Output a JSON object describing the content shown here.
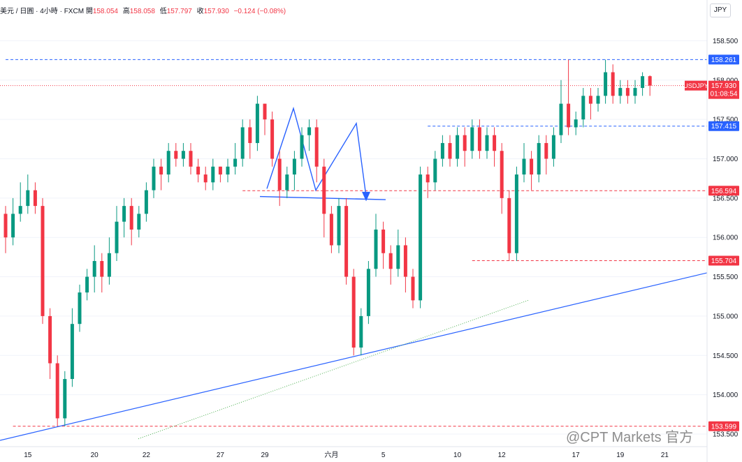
{
  "header": {
    "symbol": "美元 / 日圓",
    "timeframe": "4小時",
    "source": "FXCM",
    "open_label": "開",
    "open": "158.054",
    "high_label": "高",
    "high": "158.058",
    "low_label": "低",
    "low": "157.797",
    "close_label": "收",
    "close": "157.930",
    "change": "−0.124 (−0.08%)"
  },
  "currency_button": "JPY",
  "watermark": "@CPT Markets 官方",
  "colors": {
    "up": "#089981",
    "down": "#f23645",
    "blue": "#2962ff",
    "red": "#f23645",
    "green": "#4caf50"
  },
  "chart_data": {
    "type": "candlestick",
    "ylim": [
      153.34,
      158.77
    ],
    "y_ticks": [
      "153.500",
      "154.000",
      "154.500",
      "155.000",
      "155.500",
      "156.000",
      "156.500",
      "157.000",
      "157.500",
      "158.000",
      "158.500"
    ],
    "x_ticks": [
      {
        "label": "15",
        "i": 3
      },
      {
        "label": "20",
        "i": 12
      },
      {
        "label": "22",
        "i": 19
      },
      {
        "label": "27",
        "i": 29
      },
      {
        "label": "29",
        "i": 35
      },
      {
        "label": "六月",
        "i": 44
      },
      {
        "label": "5",
        "i": 51
      },
      {
        "label": "10",
        "i": 61
      },
      {
        "label": "12",
        "i": 67
      },
      {
        "label": "17",
        "i": 77
      },
      {
        "label": "19",
        "i": 83
      },
      {
        "label": "21",
        "i": 89
      }
    ],
    "key_levels": [
      {
        "label": "158.261",
        "value": 158.261,
        "style": "blue",
        "from_i": 0
      },
      {
        "label": "157.415",
        "value": 157.415,
        "style": "blue",
        "from_i": 57
      },
      {
        "label": "156.594",
        "value": 156.594,
        "style": "red",
        "from_i": 32
      },
      {
        "label": "155.704",
        "value": 155.704,
        "style": "red",
        "from_i": 63
      },
      {
        "label": "153.599",
        "value": 153.599,
        "style": "red",
        "from_i": 1
      }
    ],
    "current_price": {
      "symbol": "USDJPY",
      "price": "157.930",
      "countdown": "01:08:54",
      "value": 157.93
    },
    "candles": [
      [
        156.3,
        156.0,
        156.4,
        155.8
      ],
      [
        156.0,
        156.3,
        156.5,
        155.9
      ],
      [
        156.3,
        156.4,
        156.7,
        156.2
      ],
      [
        156.4,
        156.6,
        156.8,
        156.3
      ],
      [
        156.6,
        156.4,
        156.7,
        156.3
      ],
      [
        156.4,
        155.0,
        156.5,
        154.9
      ],
      [
        155.0,
        154.4,
        155.1,
        154.2
      ],
      [
        154.4,
        153.7,
        154.5,
        153.6
      ],
      [
        153.7,
        154.2,
        154.3,
        153.6
      ],
      [
        154.2,
        154.9,
        155.1,
        154.1
      ],
      [
        154.9,
        155.3,
        155.4,
        154.8
      ],
      [
        155.3,
        155.5,
        155.6,
        155.2
      ],
      [
        155.5,
        155.7,
        155.9,
        155.3
      ],
      [
        155.7,
        155.5,
        155.8,
        155.3
      ],
      [
        155.5,
        155.8,
        156.0,
        155.4
      ],
      [
        155.8,
        156.2,
        156.4,
        155.7
      ],
      [
        156.2,
        156.4,
        156.5,
        156.0
      ],
      [
        156.4,
        156.1,
        156.5,
        155.9
      ],
      [
        156.1,
        156.3,
        156.4,
        156.0
      ],
      [
        156.3,
        156.6,
        156.7,
        156.2
      ],
      [
        156.6,
        156.9,
        157.0,
        156.5
      ],
      [
        156.9,
        156.8,
        157.0,
        156.6
      ],
      [
        156.8,
        157.1,
        157.2,
        156.7
      ],
      [
        157.1,
        157.0,
        157.2,
        156.9
      ],
      [
        157.0,
        157.1,
        157.2,
        156.9
      ],
      [
        157.1,
        156.9,
        157.2,
        156.8
      ],
      [
        156.9,
        156.8,
        157.0,
        156.7
      ],
      [
        156.8,
        156.7,
        156.9,
        156.6
      ],
      [
        156.7,
        156.9,
        157.0,
        156.6
      ],
      [
        156.9,
        156.8,
        156.9,
        156.7
      ],
      [
        156.8,
        156.9,
        157.0,
        156.7
      ],
      [
        156.9,
        157.0,
        157.2,
        156.8
      ],
      [
        157.0,
        157.4,
        157.5,
        156.9
      ],
      [
        157.4,
        157.2,
        157.5,
        157.0
      ],
      [
        157.2,
        157.7,
        157.8,
        157.1
      ],
      [
        157.7,
        157.5,
        157.7,
        157.3
      ],
      [
        157.5,
        157.0,
        157.6,
        156.9
      ],
      [
        157.0,
        156.6,
        157.1,
        156.4
      ],
      [
        156.6,
        156.8,
        156.9,
        156.5
      ],
      [
        156.8,
        157.0,
        157.1,
        156.6
      ],
      [
        157.0,
        157.3,
        157.4,
        156.9
      ],
      [
        157.3,
        157.4,
        157.5,
        157.1
      ],
      [
        157.4,
        156.9,
        157.5,
        156.7
      ],
      [
        156.9,
        156.3,
        157.0,
        156.0
      ],
      [
        156.3,
        155.9,
        156.4,
        155.8
      ],
      [
        155.9,
        156.4,
        156.5,
        155.8
      ],
      [
        156.4,
        155.5,
        156.5,
        155.4
      ],
      [
        155.5,
        154.6,
        155.6,
        154.5
      ],
      [
        154.6,
        155.0,
        155.1,
        154.5
      ],
      [
        155.0,
        155.6,
        155.7,
        154.9
      ],
      [
        155.6,
        156.1,
        156.3,
        155.5
      ],
      [
        156.1,
        155.8,
        156.2,
        155.6
      ],
      [
        155.8,
        155.6,
        155.9,
        155.4
      ],
      [
        155.6,
        155.9,
        156.1,
        155.5
      ],
      [
        155.9,
        155.5,
        156.0,
        155.3
      ],
      [
        155.5,
        155.2,
        155.6,
        155.1
      ],
      [
        155.2,
        156.8,
        156.9,
        155.1
      ],
      [
        156.8,
        156.7,
        156.9,
        156.5
      ],
      [
        156.7,
        157.0,
        157.1,
        156.6
      ],
      [
        157.0,
        157.2,
        157.3,
        156.9
      ],
      [
        157.2,
        157.0,
        157.3,
        156.9
      ],
      [
        157.0,
        157.3,
        157.4,
        156.9
      ],
      [
        157.3,
        157.1,
        157.4,
        156.9
      ],
      [
        157.1,
        157.4,
        157.5,
        157.0
      ],
      [
        157.4,
        157.1,
        157.5,
        157.0
      ],
      [
        157.1,
        157.3,
        157.4,
        157.0
      ],
      [
        157.3,
        157.1,
        157.4,
        156.9
      ],
      [
        157.1,
        156.5,
        157.2,
        156.3
      ],
      [
        156.5,
        155.8,
        156.6,
        155.7
      ],
      [
        155.8,
        156.8,
        156.9,
        155.7
      ],
      [
        156.8,
        157.0,
        157.2,
        156.7
      ],
      [
        157.0,
        156.8,
        157.1,
        156.6
      ],
      [
        156.8,
        157.2,
        157.3,
        156.7
      ],
      [
        157.2,
        157.0,
        157.3,
        156.8
      ],
      [
        157.0,
        157.3,
        157.4,
        156.9
      ],
      [
        157.3,
        157.7,
        158.0,
        157.2
      ],
      [
        157.7,
        157.4,
        158.26,
        157.3
      ],
      [
        157.4,
        157.5,
        157.6,
        157.3
      ],
      [
        157.5,
        157.8,
        157.9,
        157.4
      ],
      [
        157.8,
        157.7,
        157.9,
        157.5
      ],
      [
        157.7,
        157.8,
        157.9,
        157.6
      ],
      [
        157.8,
        158.1,
        158.26,
        157.7
      ],
      [
        158.1,
        157.8,
        158.2,
        157.7
      ],
      [
        157.8,
        157.9,
        158.0,
        157.7
      ],
      [
        157.9,
        157.8,
        158.0,
        157.7
      ],
      [
        157.8,
        157.9,
        158.0,
        157.7
      ],
      [
        157.9,
        158.05,
        158.1,
        157.8
      ],
      [
        158.05,
        157.93,
        158.06,
        157.8
      ]
    ]
  }
}
